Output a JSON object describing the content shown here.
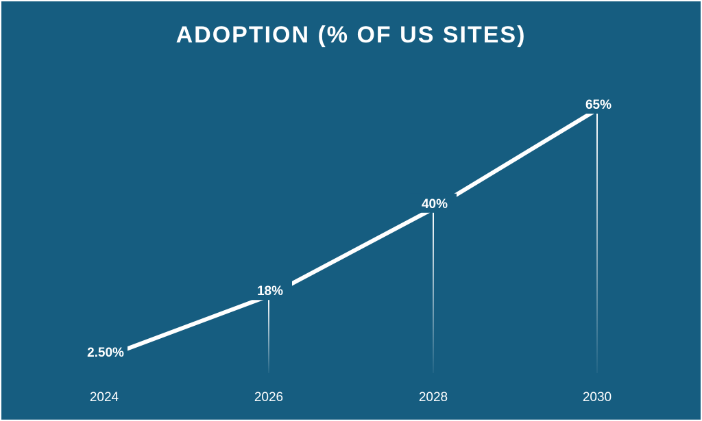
{
  "chart_data": {
    "type": "line",
    "title": "ADOPTION (% OF US SITES)",
    "xlabel": "",
    "ylabel": "",
    "categories": [
      "2024",
      "2026",
      "2028",
      "2030"
    ],
    "series": [
      {
        "values": [
          2.5,
          18,
          40,
          65
        ],
        "labels": [
          "2.50%",
          "18%",
          "40%",
          "65%"
        ]
      }
    ],
    "ylim": [
      0,
      65
    ],
    "grid": false,
    "legend": "none",
    "colors": {
      "background": "#165d80",
      "line": "#ffffff",
      "text": "#ffffff"
    }
  }
}
